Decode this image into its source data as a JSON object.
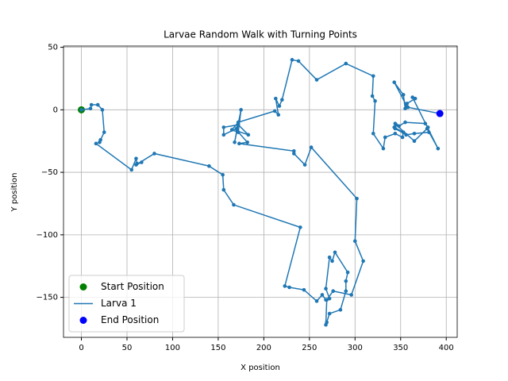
{
  "chart_data": {
    "type": "line",
    "title": "Larvae Random Walk with Turning Points",
    "xlabel": "X position",
    "ylabel": "Y position",
    "xlim": [
      -19.6,
      412
    ],
    "ylim": [
      -182,
      51
    ],
    "xticks": [
      0,
      50,
      100,
      150,
      200,
      250,
      300,
      350,
      400
    ],
    "yticks": [
      {
        "value": -150,
        "label": "−150"
      },
      {
        "value": -100,
        "label": "−100"
      },
      {
        "value": -50,
        "label": "−50"
      },
      0,
      50
    ],
    "grid": true,
    "legend": "lower left",
    "series": [
      {
        "name": "Start Position",
        "type": "scatter",
        "color": "green",
        "x": [
          0
        ],
        "values": [
          0
        ]
      },
      {
        "name": "Larva 1",
        "type": "line",
        "color": "#1f77b4",
        "x": [
          0,
          10,
          11,
          18,
          23,
          25,
          21,
          20,
          16,
          55,
          60,
          61,
          66,
          60,
          80,
          140,
          155,
          156,
          167,
          240,
          223,
          228,
          244,
          258,
          264,
          268,
          272,
          268,
          272,
          275,
          278,
          292,
          290,
          290,
          284,
          272,
          269,
          268,
          269,
          276,
          296,
          309,
          300,
          302,
          252,
          245,
          233,
          233,
          173,
          182,
          171,
          183,
          172,
          156,
          156,
          170,
          172,
          168,
          175,
          172,
          165,
          172,
          212,
          216,
          213,
          217,
          220,
          231,
          238,
          258,
          290,
          320,
          319,
          322,
          320,
          331,
          333,
          344,
          352,
          353,
          343,
          344,
          348,
          355,
          377,
          380,
          381,
          365,
          356,
          344,
          345,
          365,
          379,
          391,
          363,
          366,
          357,
          355,
          353,
          343,
          356,
          358,
          393
        ],
        "values": [
          0,
          1,
          4,
          4,
          0,
          -18,
          -24,
          -26,
          -27,
          -48,
          -39,
          -43,
          -42,
          -44,
          -35,
          -45,
          -52,
          -64,
          -76,
          -94,
          -141,
          -142,
          -144,
          -153,
          -148,
          -152,
          -151,
          -143,
          -118,
          -121,
          -114,
          -130,
          -137,
          -145,
          -160,
          -163,
          -170,
          -172,
          -152,
          -145,
          -148,
          -121,
          -105,
          -71,
          -30,
          -44,
          -35,
          -33,
          -27,
          -26,
          -17,
          -20,
          -12,
          -14,
          -20,
          -15,
          -10,
          -26,
          0,
          -18,
          -16,
          -10,
          -1,
          -4,
          9,
          3,
          8,
          40,
          39,
          24,
          37,
          27,
          11,
          7,
          -19,
          -31,
          -22,
          -19,
          -22,
          -18,
          -14,
          -11,
          -13,
          -10,
          -11,
          -14,
          -18,
          -19,
          -20,
          -15,
          -12,
          -25,
          -15,
          -31,
          10,
          9,
          5,
          1,
          12,
          22,
          4,
          2,
          -3
        ]
      },
      {
        "name": "End Position",
        "type": "scatter",
        "color": "blue",
        "x": [
          393
        ],
        "values": [
          -3
        ]
      }
    ]
  }
}
